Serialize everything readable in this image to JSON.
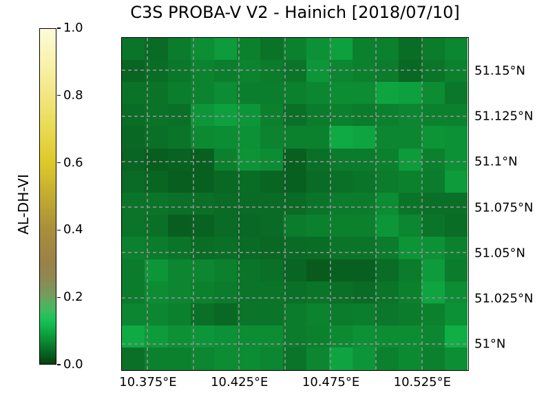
{
  "title": "C3S PROBA-V V2 - Hainich [2018/07/10]",
  "colorbar": {
    "label": "AL-DH-VI",
    "ticks": [
      {
        "value": 1.0,
        "label": "1.0"
      },
      {
        "value": 0.8,
        "label": "0.8"
      },
      {
        "value": 0.6,
        "label": "0.6"
      },
      {
        "value": 0.4,
        "label": "0.4"
      },
      {
        "value": 0.2,
        "label": "0.2"
      },
      {
        "value": 0.0,
        "label": "0.0"
      }
    ],
    "range": [
      0.0,
      1.0
    ],
    "colormap_stops": [
      [
        0.0,
        "#05400d"
      ],
      [
        0.03,
        "#086020"
      ],
      [
        0.05,
        "#0a7529"
      ],
      [
        0.07,
        "#0c8c33"
      ],
      [
        0.09,
        "#0da03e"
      ],
      [
        0.11,
        "#10b449"
      ],
      [
        0.13,
        "#19c255"
      ],
      [
        0.16,
        "#3dbc5e"
      ],
      [
        0.2,
        "#6fa05e"
      ],
      [
        0.25,
        "#8d8a52"
      ],
      [
        0.3,
        "#9a8149"
      ],
      [
        0.4,
        "#a88e3b"
      ],
      [
        0.5,
        "#c2ab31"
      ],
      [
        0.6,
        "#ddc92b"
      ],
      [
        0.7,
        "#e9da51"
      ],
      [
        0.8,
        "#f2e680"
      ],
      [
        0.9,
        "#f9f2ae"
      ],
      [
        1.0,
        "#fdfbd8"
      ]
    ]
  },
  "chart_data": {
    "type": "heatmap",
    "title": "C3S PROBA-V V2 - Hainich [2018/07/10]",
    "colorbar_label": "AL-DH-VI",
    "lon_range": [
      10.3607,
      10.5501
    ],
    "lat_range": [
      50.9857,
      51.1681
    ],
    "grid": "dashed-gray",
    "x_tick_labels": [
      {
        "value": 10.375,
        "label": "10.375°E"
      },
      {
        "value": 10.425,
        "label": "10.425°E"
      },
      {
        "value": 10.475,
        "label": "10.475°E"
      },
      {
        "value": 10.525,
        "label": "10.525°E"
      }
    ],
    "y_tick_labels": [
      {
        "value": 51.15,
        "label": "51.15°N"
      },
      {
        "value": 51.125,
        "label": "51.125°N"
      },
      {
        "value": 51.1,
        "label": "51.1°N"
      },
      {
        "value": 51.075,
        "label": "51.075°N"
      },
      {
        "value": 51.05,
        "label": "51.05°N"
      },
      {
        "value": 51.025,
        "label": "51.025°N"
      },
      {
        "value": 51.0,
        "label": "51°N"
      }
    ],
    "x_gridline_values": [
      10.375,
      10.4,
      10.425,
      10.45,
      10.475,
      10.5,
      10.525
    ],
    "y_gridline_values": [
      51.15,
      51.125,
      51.1,
      51.075,
      51.05,
      51.025,
      51.0
    ],
    "n_cols": 15,
    "n_rows": 15,
    "values": [
      [
        0.05,
        0.04,
        0.055,
        0.072,
        0.085,
        0.06,
        0.048,
        0.06,
        0.075,
        0.09,
        0.06,
        0.06,
        0.042,
        0.055,
        0.065
      ],
      [
        0.035,
        0.042,
        0.052,
        0.062,
        0.058,
        0.062,
        0.055,
        0.05,
        0.08,
        0.065,
        0.06,
        0.055,
        0.038,
        0.05,
        0.06
      ],
      [
        0.048,
        0.048,
        0.058,
        0.062,
        0.07,
        0.058,
        0.058,
        0.06,
        0.065,
        0.07,
        0.07,
        0.095,
        0.09,
        0.07,
        0.052
      ],
      [
        0.042,
        0.048,
        0.045,
        0.08,
        0.09,
        0.08,
        0.06,
        0.045,
        0.055,
        0.06,
        0.055,
        0.06,
        0.065,
        0.06,
        0.06
      ],
      [
        0.038,
        0.045,
        0.05,
        0.068,
        0.07,
        0.075,
        0.062,
        0.06,
        0.06,
        0.1,
        0.095,
        0.065,
        0.065,
        0.078,
        0.075
      ],
      [
        0.035,
        0.028,
        0.032,
        0.03,
        0.06,
        0.078,
        0.07,
        0.03,
        0.045,
        0.055,
        0.055,
        0.06,
        0.085,
        0.06,
        0.075
      ],
      [
        0.04,
        0.035,
        0.028,
        0.03,
        0.038,
        0.042,
        0.035,
        0.03,
        0.04,
        0.045,
        0.05,
        0.055,
        0.06,
        0.055,
        0.085
      ],
      [
        0.05,
        0.05,
        0.045,
        0.045,
        0.04,
        0.04,
        0.04,
        0.04,
        0.05,
        0.055,
        0.055,
        0.07,
        0.05,
        0.045,
        0.045
      ],
      [
        0.05,
        0.045,
        0.028,
        0.032,
        0.04,
        0.038,
        0.04,
        0.055,
        0.06,
        0.06,
        0.06,
        0.08,
        0.065,
        0.05,
        0.042
      ],
      [
        0.06,
        0.055,
        0.05,
        0.042,
        0.045,
        0.04,
        0.038,
        0.04,
        0.042,
        0.05,
        0.05,
        0.055,
        0.078,
        0.075,
        0.06
      ],
      [
        0.055,
        0.08,
        0.065,
        0.065,
        0.06,
        0.05,
        0.045,
        0.035,
        0.025,
        0.03,
        0.03,
        0.042,
        0.055,
        0.085,
        0.055
      ],
      [
        0.055,
        0.07,
        0.065,
        0.06,
        0.055,
        0.05,
        0.05,
        0.045,
        0.05,
        0.045,
        0.04,
        0.05,
        0.06,
        0.095,
        0.07
      ],
      [
        0.065,
        0.065,
        0.06,
        0.045,
        0.038,
        0.05,
        0.05,
        0.055,
        0.062,
        0.055,
        0.058,
        0.052,
        0.055,
        0.06,
        0.075
      ],
      [
        0.1,
        0.085,
        0.075,
        0.08,
        0.075,
        0.07,
        0.07,
        0.055,
        0.06,
        0.068,
        0.075,
        0.07,
        0.07,
        0.065,
        0.105
      ],
      [
        0.045,
        0.06,
        0.06,
        0.065,
        0.07,
        0.07,
        0.065,
        0.05,
        0.065,
        0.095,
        0.08,
        0.06,
        0.068,
        0.06,
        0.072
      ]
    ]
  }
}
